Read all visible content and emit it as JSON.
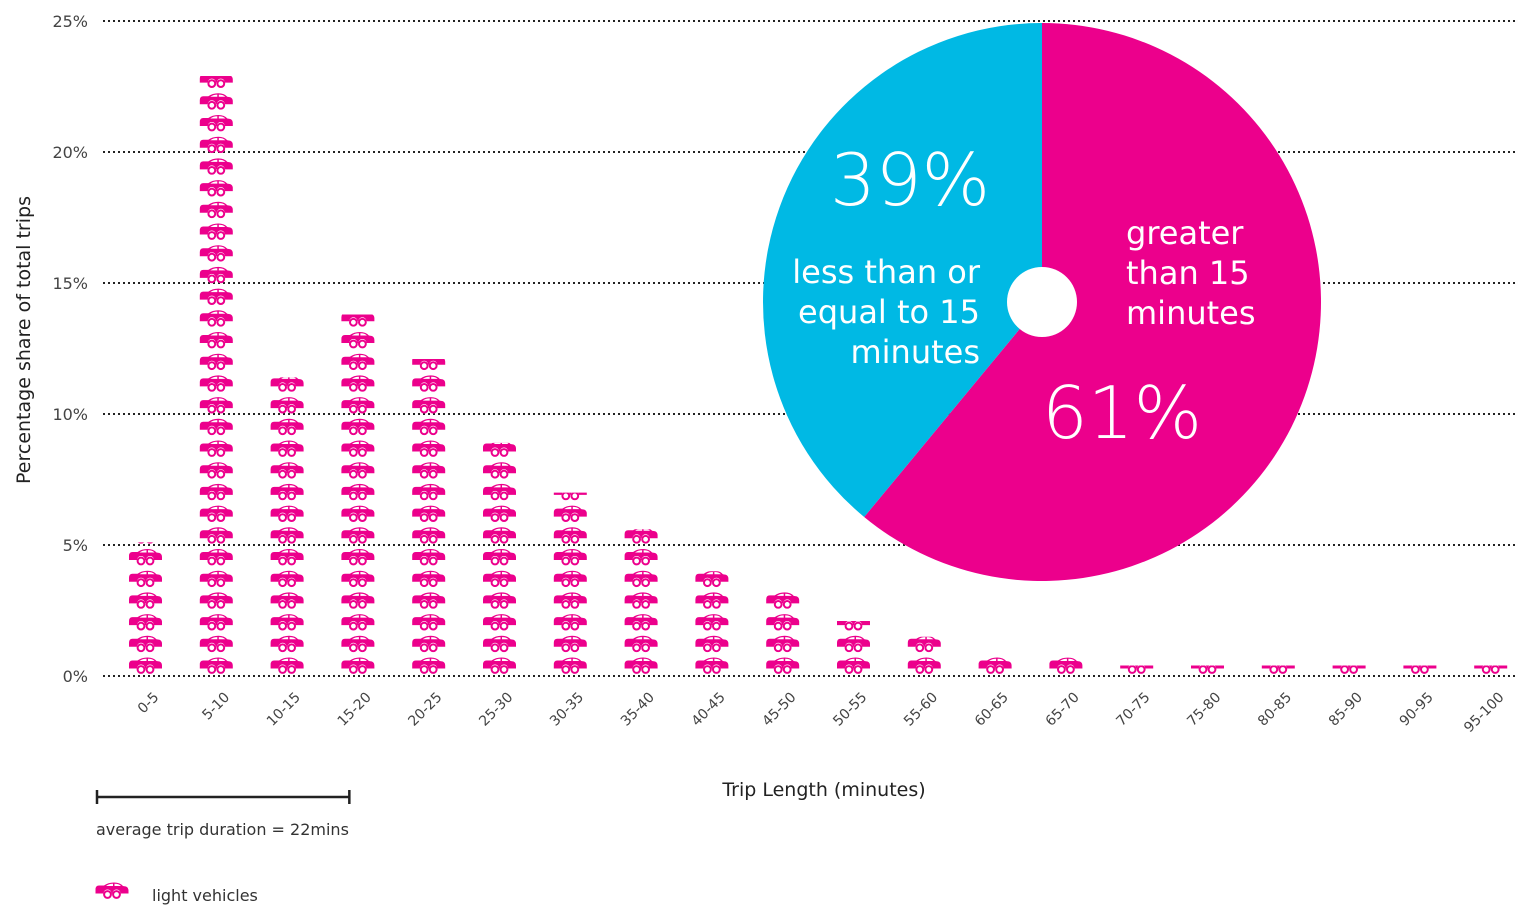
{
  "chart_data": {
    "type": "bar",
    "ylabel": "Percentage share of total trips",
    "xlabel": "Trip Length (minutes)",
    "ylim": [
      0,
      25
    ],
    "yticks": [
      0,
      5,
      10,
      15,
      20,
      25
    ],
    "ytick_labels": [
      "0%",
      "5%",
      "10%",
      "15%",
      "20%",
      "25%"
    ],
    "grid": true,
    "categories": [
      "0-5",
      "5-10",
      "10-15",
      "15-20",
      "20-25",
      "25-30",
      "30-35",
      "35-40",
      "40-45",
      "45-50",
      "50-55",
      "55-60",
      "60-65",
      "65-70",
      "70-75",
      "75-80",
      "80-85",
      "85-90",
      "90-95",
      "95-100"
    ],
    "values": [
      5.1,
      22.9,
      11.4,
      13.8,
      12.1,
      8.9,
      7.0,
      5.6,
      4.0,
      3.2,
      2.1,
      1.5,
      0.9,
      0.7,
      0.4,
      0.4,
      0.4,
      0.4,
      0.4,
      0.4
    ],
    "bar_color": "#ec008c",
    "average": {
      "label": "average trip duration = 22mins",
      "value_minutes": 22
    },
    "legend": {
      "label": "light vehicles",
      "icon": "car-icon",
      "placement": "bottom-left"
    },
    "pie": {
      "type": "pie",
      "slices": [
        {
          "value": 61,
          "pct_label": "61%",
          "label_lines": [
            "greater",
            "than 15",
            "minutes"
          ],
          "color": "#ec008c"
        },
        {
          "value": 39,
          "pct_label": "39%",
          "label_lines": [
            "less than or",
            "equal to 15",
            "minutes"
          ],
          "color": "#00b9e4"
        }
      ]
    }
  }
}
